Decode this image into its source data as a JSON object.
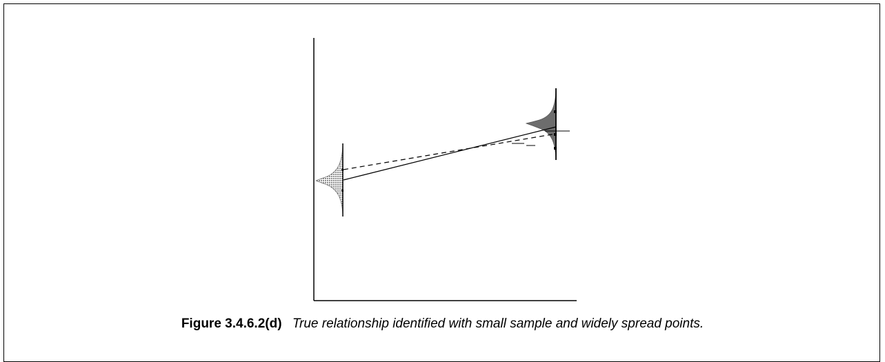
{
  "caption": {
    "label": "Figure 3.4.6.2(d)",
    "text": "True relationship identified with small sample and widely spread points."
  },
  "diagram": {
    "axis_color": "#000000",
    "left_distribution_fill": "#9a9a9a",
    "right_distribution_fill": "#6a6a6a",
    "true_line_style": "solid",
    "fitted_line_style": "dashed"
  }
}
